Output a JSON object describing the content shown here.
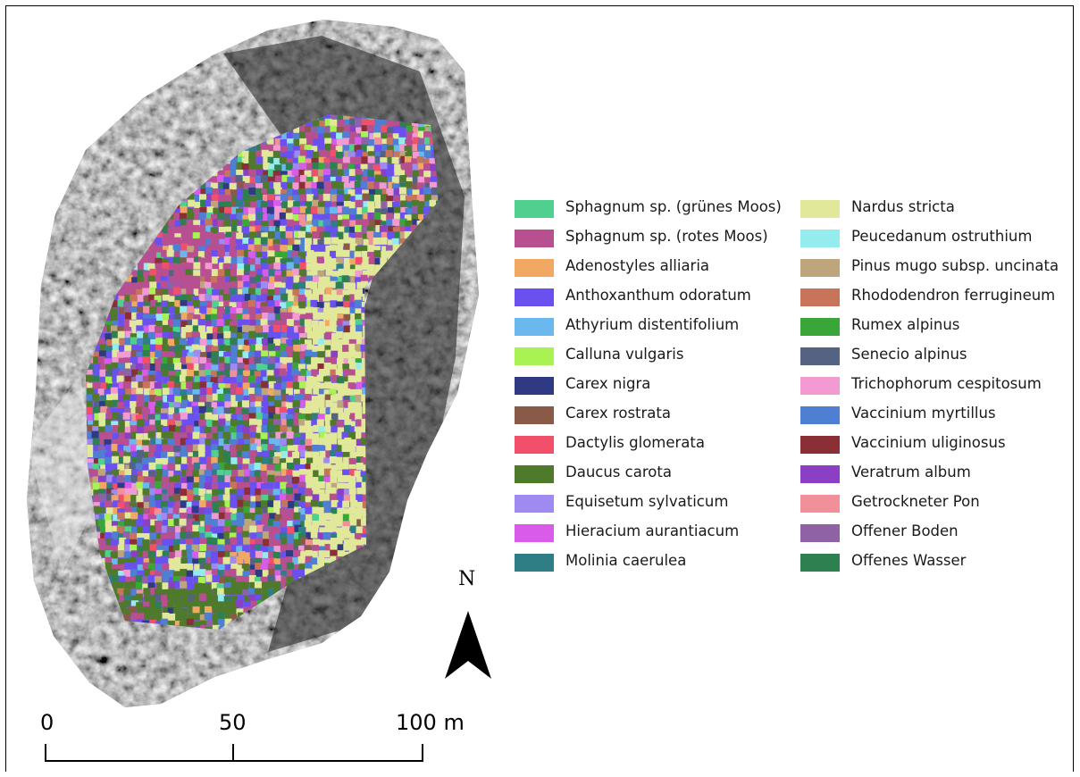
{
  "legend": {
    "column1": [
      {
        "label": "Sphagnum sp. (grünes Moos)",
        "color": "#4fd08f"
      },
      {
        "label": "Sphagnum sp. (rotes Moos)",
        "color": "#b84f8f"
      },
      {
        "label": "Adenostyles alliaria",
        "color": "#f0a862"
      },
      {
        "label": "Anthoxanthum odoratum",
        "color": "#6a51ef"
      },
      {
        "label": "Athyrium distentifolium",
        "color": "#6bb8ef"
      },
      {
        "label": "Calluna vulgaris",
        "color": "#a8f254"
      },
      {
        "label": "Carex nigra",
        "color": "#2f3a82"
      },
      {
        "label": "Carex rostrata",
        "color": "#8a5a48"
      },
      {
        "label": "Dactylis glomerata",
        "color": "#f2506a"
      },
      {
        "label": "Daucus carota",
        "color": "#4f7a2c"
      },
      {
        "label": "Equisetum sylvaticum",
        "color": "#9e8af0"
      },
      {
        "label": "Hieracium aurantiacum",
        "color": "#d95ce8"
      },
      {
        "label": "Molinia caerulea",
        "color": "#2f7e86"
      }
    ],
    "column2": [
      {
        "label": "Nardus stricta",
        "color": "#e2e89a"
      },
      {
        "label": "Peucedanum ostruthium",
        "color": "#95ecef"
      },
      {
        "label": "Pinus mugo subsp. uncinata",
        "color": "#bfa57c"
      },
      {
        "label": "Rhododendron ferrugineum",
        "color": "#c8745a"
      },
      {
        "label": "Rumex alpinus",
        "color": "#3aa63a"
      },
      {
        "label": "Senecio alpinus",
        "color": "#556282"
      },
      {
        "label": "Trichophorum cespitosum",
        "color": "#f29ad2"
      },
      {
        "label": "Vaccinium myrtillus",
        "color": "#4e7fd2"
      },
      {
        "label": "Vaccinium uliginosus",
        "color": "#8a2f36"
      },
      {
        "label": "Veratrum album",
        "color": "#8a3fc4"
      },
      {
        "label": "Getrockneter Pon",
        "color": "#f2909a"
      },
      {
        "label": "Offener Boden",
        "color": "#8e62a4"
      },
      {
        "label": "Offenes Wasser",
        "color": "#2f8050"
      }
    ]
  },
  "north_arrow": {
    "label": "N",
    "icon": "north-arrow-icon"
  },
  "scale_bar": {
    "labels": [
      "0",
      "50",
      "100 m"
    ],
    "icon": "scale-bar-icon"
  },
  "map": {
    "background": "grayscale orthophoto",
    "classification": "vegetation classes"
  }
}
